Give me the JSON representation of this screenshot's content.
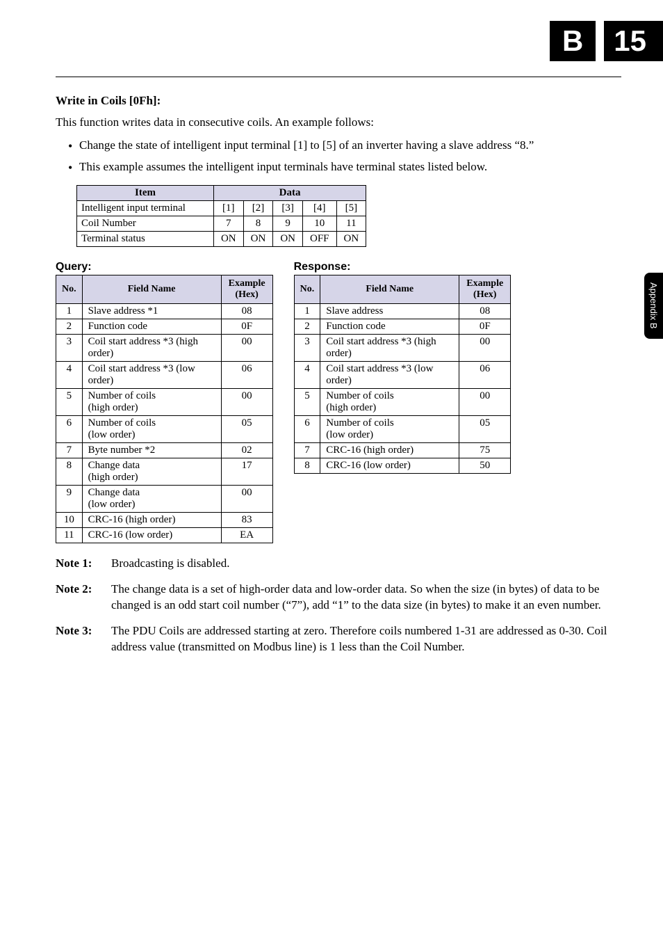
{
  "header": {
    "letter": "B",
    "page": "15",
    "sidebar": "Appendix B"
  },
  "section_title": "Write in Coils [0Fh]:",
  "intro": "This function writes data in consecutive coils. An example follows:",
  "bullets": [
    "Change the state of intelligent input terminal [1] to [5] of an inverter having a slave address “8.”",
    "This example assumes the intelligent input terminals have terminal states listed below."
  ],
  "data_table": {
    "headers": [
      "Item",
      "Data"
    ],
    "cols": [
      "[1]",
      "[2]",
      "[3]",
      "[4]",
      "[5]"
    ],
    "rows": [
      {
        "label": "Intelligent input terminal",
        "vals": [
          "[1]",
          "[2]",
          "[3]",
          "[4]",
          "[5]"
        ]
      },
      {
        "label": "Coil Number",
        "vals": [
          "7",
          "8",
          "9",
          "10",
          "11"
        ]
      },
      {
        "label": "Terminal status",
        "vals": [
          "ON",
          "ON",
          "ON",
          "OFF",
          "ON"
        ]
      }
    ]
  },
  "query": {
    "title": "Query:",
    "headers": [
      "No.",
      "Field Name",
      "Example (Hex)"
    ],
    "rows": [
      {
        "no": "1",
        "fn": "Slave address *1",
        "ex": "08"
      },
      {
        "no": "2",
        "fn": "Function code",
        "ex": "0F"
      },
      {
        "no": "3",
        "fn": "Coil start address *3 (high order)",
        "ex": "00"
      },
      {
        "no": "4",
        "fn": "Coil start address *3 (low order)",
        "ex": "06"
      },
      {
        "no": "5",
        "fn": "Number of coils\n(high order)",
        "ex": "00"
      },
      {
        "no": "6",
        "fn": "Number of coils\n(low order)",
        "ex": "05"
      },
      {
        "no": "7",
        "fn": "Byte number *2",
        "ex": "02"
      },
      {
        "no": "8",
        "fn": "Change data\n(high order)",
        "ex": "17"
      },
      {
        "no": "9",
        "fn": "Change data\n(low order)",
        "ex": "00"
      },
      {
        "no": "10",
        "fn": "CRC-16 (high order)",
        "ex": "83"
      },
      {
        "no": "11",
        "fn": "CRC-16 (low order)",
        "ex": "EA"
      }
    ]
  },
  "response": {
    "title": "Response:",
    "headers": [
      "No.",
      "Field Name",
      "Example (Hex)"
    ],
    "rows": [
      {
        "no": "1",
        "fn": "Slave address",
        "ex": "08"
      },
      {
        "no": "2",
        "fn": "Function code",
        "ex": "0F"
      },
      {
        "no": "3",
        "fn": "Coil start address *3 (high order)",
        "ex": "00"
      },
      {
        "no": "4",
        "fn": "Coil start address *3 (low order)",
        "ex": "06"
      },
      {
        "no": "5",
        "fn": "Number of coils\n(high order)",
        "ex": "00"
      },
      {
        "no": "6",
        "fn": "Number of coils\n(low order)",
        "ex": "05"
      },
      {
        "no": "7",
        "fn": "CRC-16 (high order)",
        "ex": "75"
      },
      {
        "no": "8",
        "fn": "CRC-16 (low order)",
        "ex": "50"
      }
    ]
  },
  "notes": [
    {
      "label": "Note 1:",
      "body": "Broadcasting is disabled."
    },
    {
      "label": "Note 2:",
      "body": "The change data is a set of high-order data and low-order data. So when the size (in bytes) of data to be changed is an odd start coil number (“7”), add “1” to the data size (in bytes) to make it an even number."
    },
    {
      "label": "Note 3:",
      "body": "The PDU Coils are addressed starting at zero. Therefore coils numbered 1-31 are addressed as 0-30. Coil address value (transmitted on Modbus line) is 1 less than the Coil Number."
    }
  ]
}
